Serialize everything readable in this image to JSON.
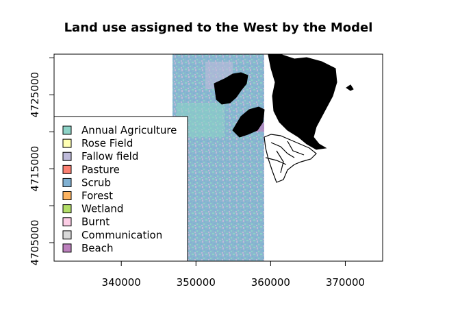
{
  "chart_data": {
    "type": "map",
    "title": "Land use assigned to the West by the Model",
    "x_ticks": [
      340000,
      350000,
      360000,
      370000
    ],
    "y_ticks": [
      4705000,
      4715000,
      4725000
    ],
    "xlim": [
      331000,
      375000
    ],
    "ylim": [
      4702500,
      4730500
    ],
    "raster_extent": {
      "x": [
        347000,
        359000
      ],
      "y": [
        4702500,
        4730500
      ]
    },
    "legend": [
      {
        "label": "Annual Agriculture",
        "color": "#8DD3C7"
      },
      {
        "label": "Rose Field",
        "color": "#FFFFB3"
      },
      {
        "label": "Fallow field",
        "color": "#BEBADA"
      },
      {
        "label": "Pasture",
        "color": "#FB8072"
      },
      {
        "label": "Scrub",
        "color": "#80B1D3"
      },
      {
        "label": "Forest",
        "color": "#FDB462"
      },
      {
        "label": "Wetland",
        "color": "#B3DE69"
      },
      {
        "label": "Burnt",
        "color": "#FCCDE5"
      },
      {
        "label": "Communication",
        "color": "#D9D9D9"
      },
      {
        "label": "Beach",
        "color": "#BC80BD"
      }
    ],
    "legend_position": "left",
    "grid": false
  }
}
